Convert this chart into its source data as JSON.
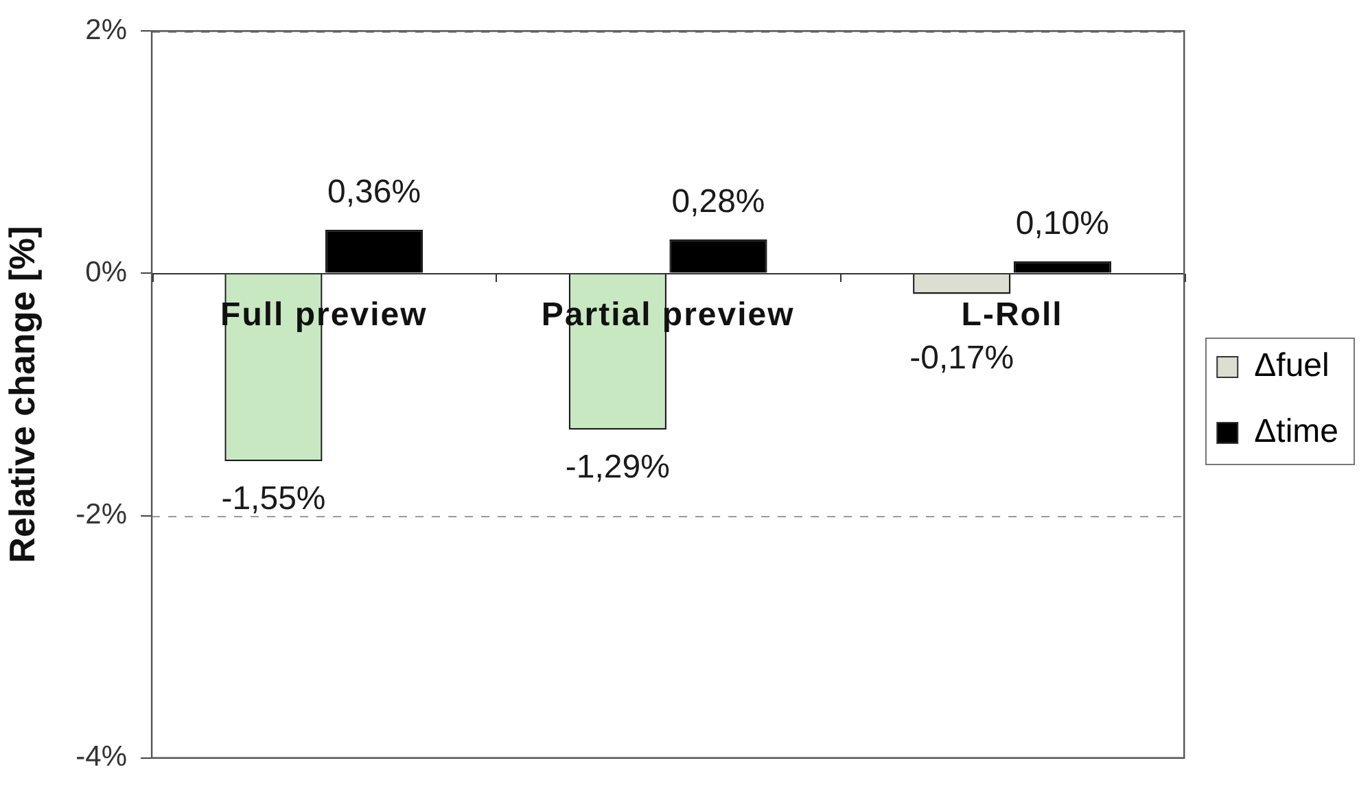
{
  "chart_data": {
    "type": "bar",
    "ylabel": "Relative change [%]",
    "categories": [
      "Full preview",
      "Partial preview",
      "L-Roll"
    ],
    "series": [
      {
        "name": "Δfuel",
        "color": "#dcded2",
        "colors": [
          "#c8e8c2",
          "#c8e8c2",
          "#dcded2"
        ],
        "values": [
          -1.55,
          -1.29,
          -0.17
        ],
        "value_labels": [
          "-1,55%",
          "-1,29%",
          "-0,17%"
        ]
      },
      {
        "name": "Δtime",
        "color": "#000000",
        "values": [
          0.36,
          0.28,
          0.1
        ],
        "value_labels": [
          "0,36%",
          "0,28%",
          "0,10%"
        ]
      }
    ],
    "ylim": [
      -4,
      2
    ],
    "yticks": [
      {
        "value": -4,
        "label": "-4%"
      },
      {
        "value": -2,
        "label": "-2%"
      },
      {
        "value": 0,
        "label": "0%"
      },
      {
        "value": 2,
        "label": "2%"
      }
    ],
    "grid": "y",
    "legend": "right"
  }
}
